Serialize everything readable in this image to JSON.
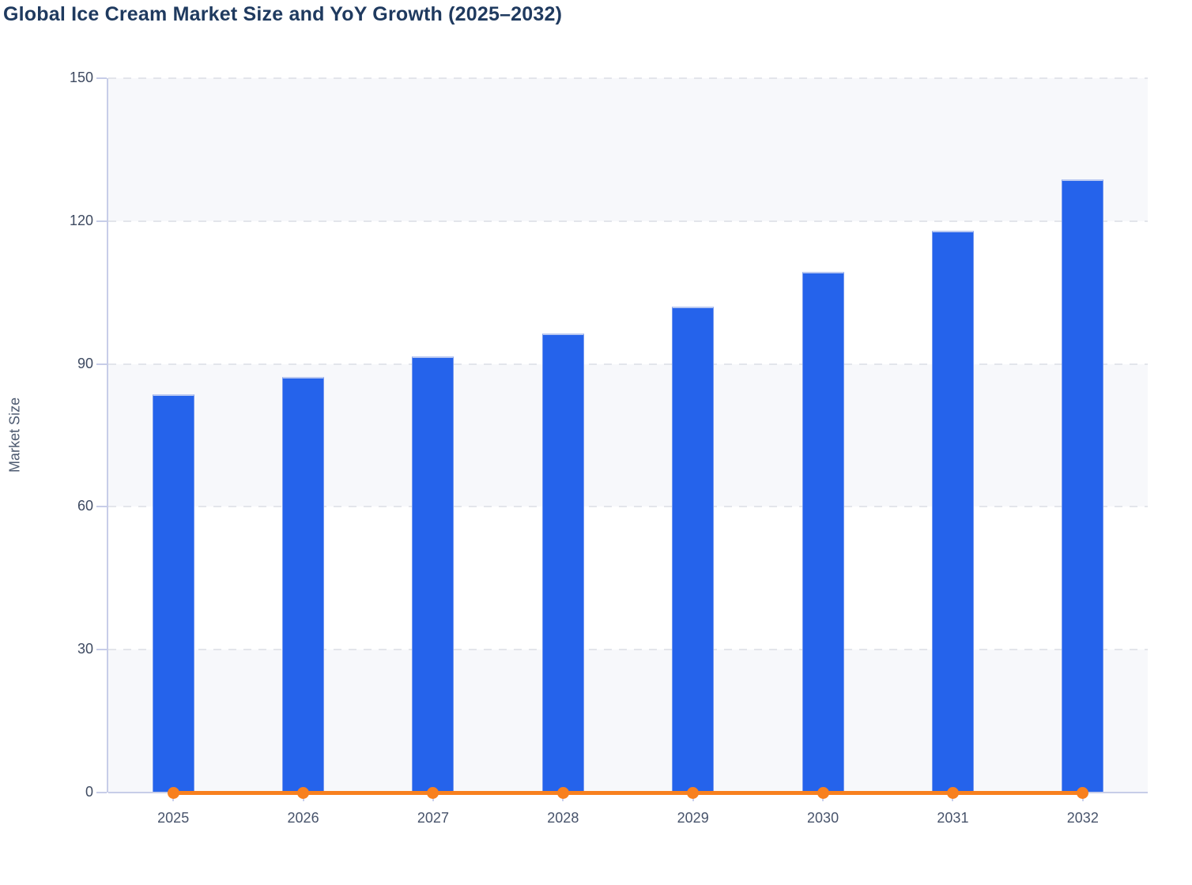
{
  "title": "Global Ice Cream Market Size and YoY Growth (2025–2032)",
  "colors": {
    "title_text": "#1f3a5f",
    "bar_fill": "#2563eb",
    "bar_top_stroke": "#b9c8f1",
    "line_stroke": "#f8801e",
    "axis_line": "#c7cde8",
    "gridline": "#e3e5eb",
    "band_fill": "#f7f8fb",
    "tick_label_text": "#3e4a61",
    "axis_title_text": "#4d5a70"
  },
  "chart_data": {
    "type": "bar",
    "title": "Global Ice Cream Market Size and YoY Growth (2025–2032)",
    "categories": [
      "2025",
      "2026",
      "2027",
      "2028",
      "2029",
      "2030",
      "2031",
      "2032"
    ],
    "series": [
      {
        "name": "Market Size",
        "type": "bar",
        "color": "#2563eb",
        "values": [
          83.6,
          87.3,
          91.6,
          96.4,
          102.0,
          109.3,
          117.9,
          128.7
        ]
      },
      {
        "name": "YoY Growth",
        "type": "line",
        "color": "#f8801e",
        "values": [
          0,
          0,
          0,
          0,
          0,
          0,
          0,
          0
        ]
      }
    ],
    "xlabel": "",
    "ylabel": "Market Size",
    "ylim": [
      0,
      150
    ],
    "yticks": [
      0,
      30,
      60,
      90,
      120,
      150
    ],
    "grid": "horizontal-dashed",
    "row_bands": "alternating, light band between 120-150, 60-90, 0-30",
    "legend_position": "none"
  }
}
